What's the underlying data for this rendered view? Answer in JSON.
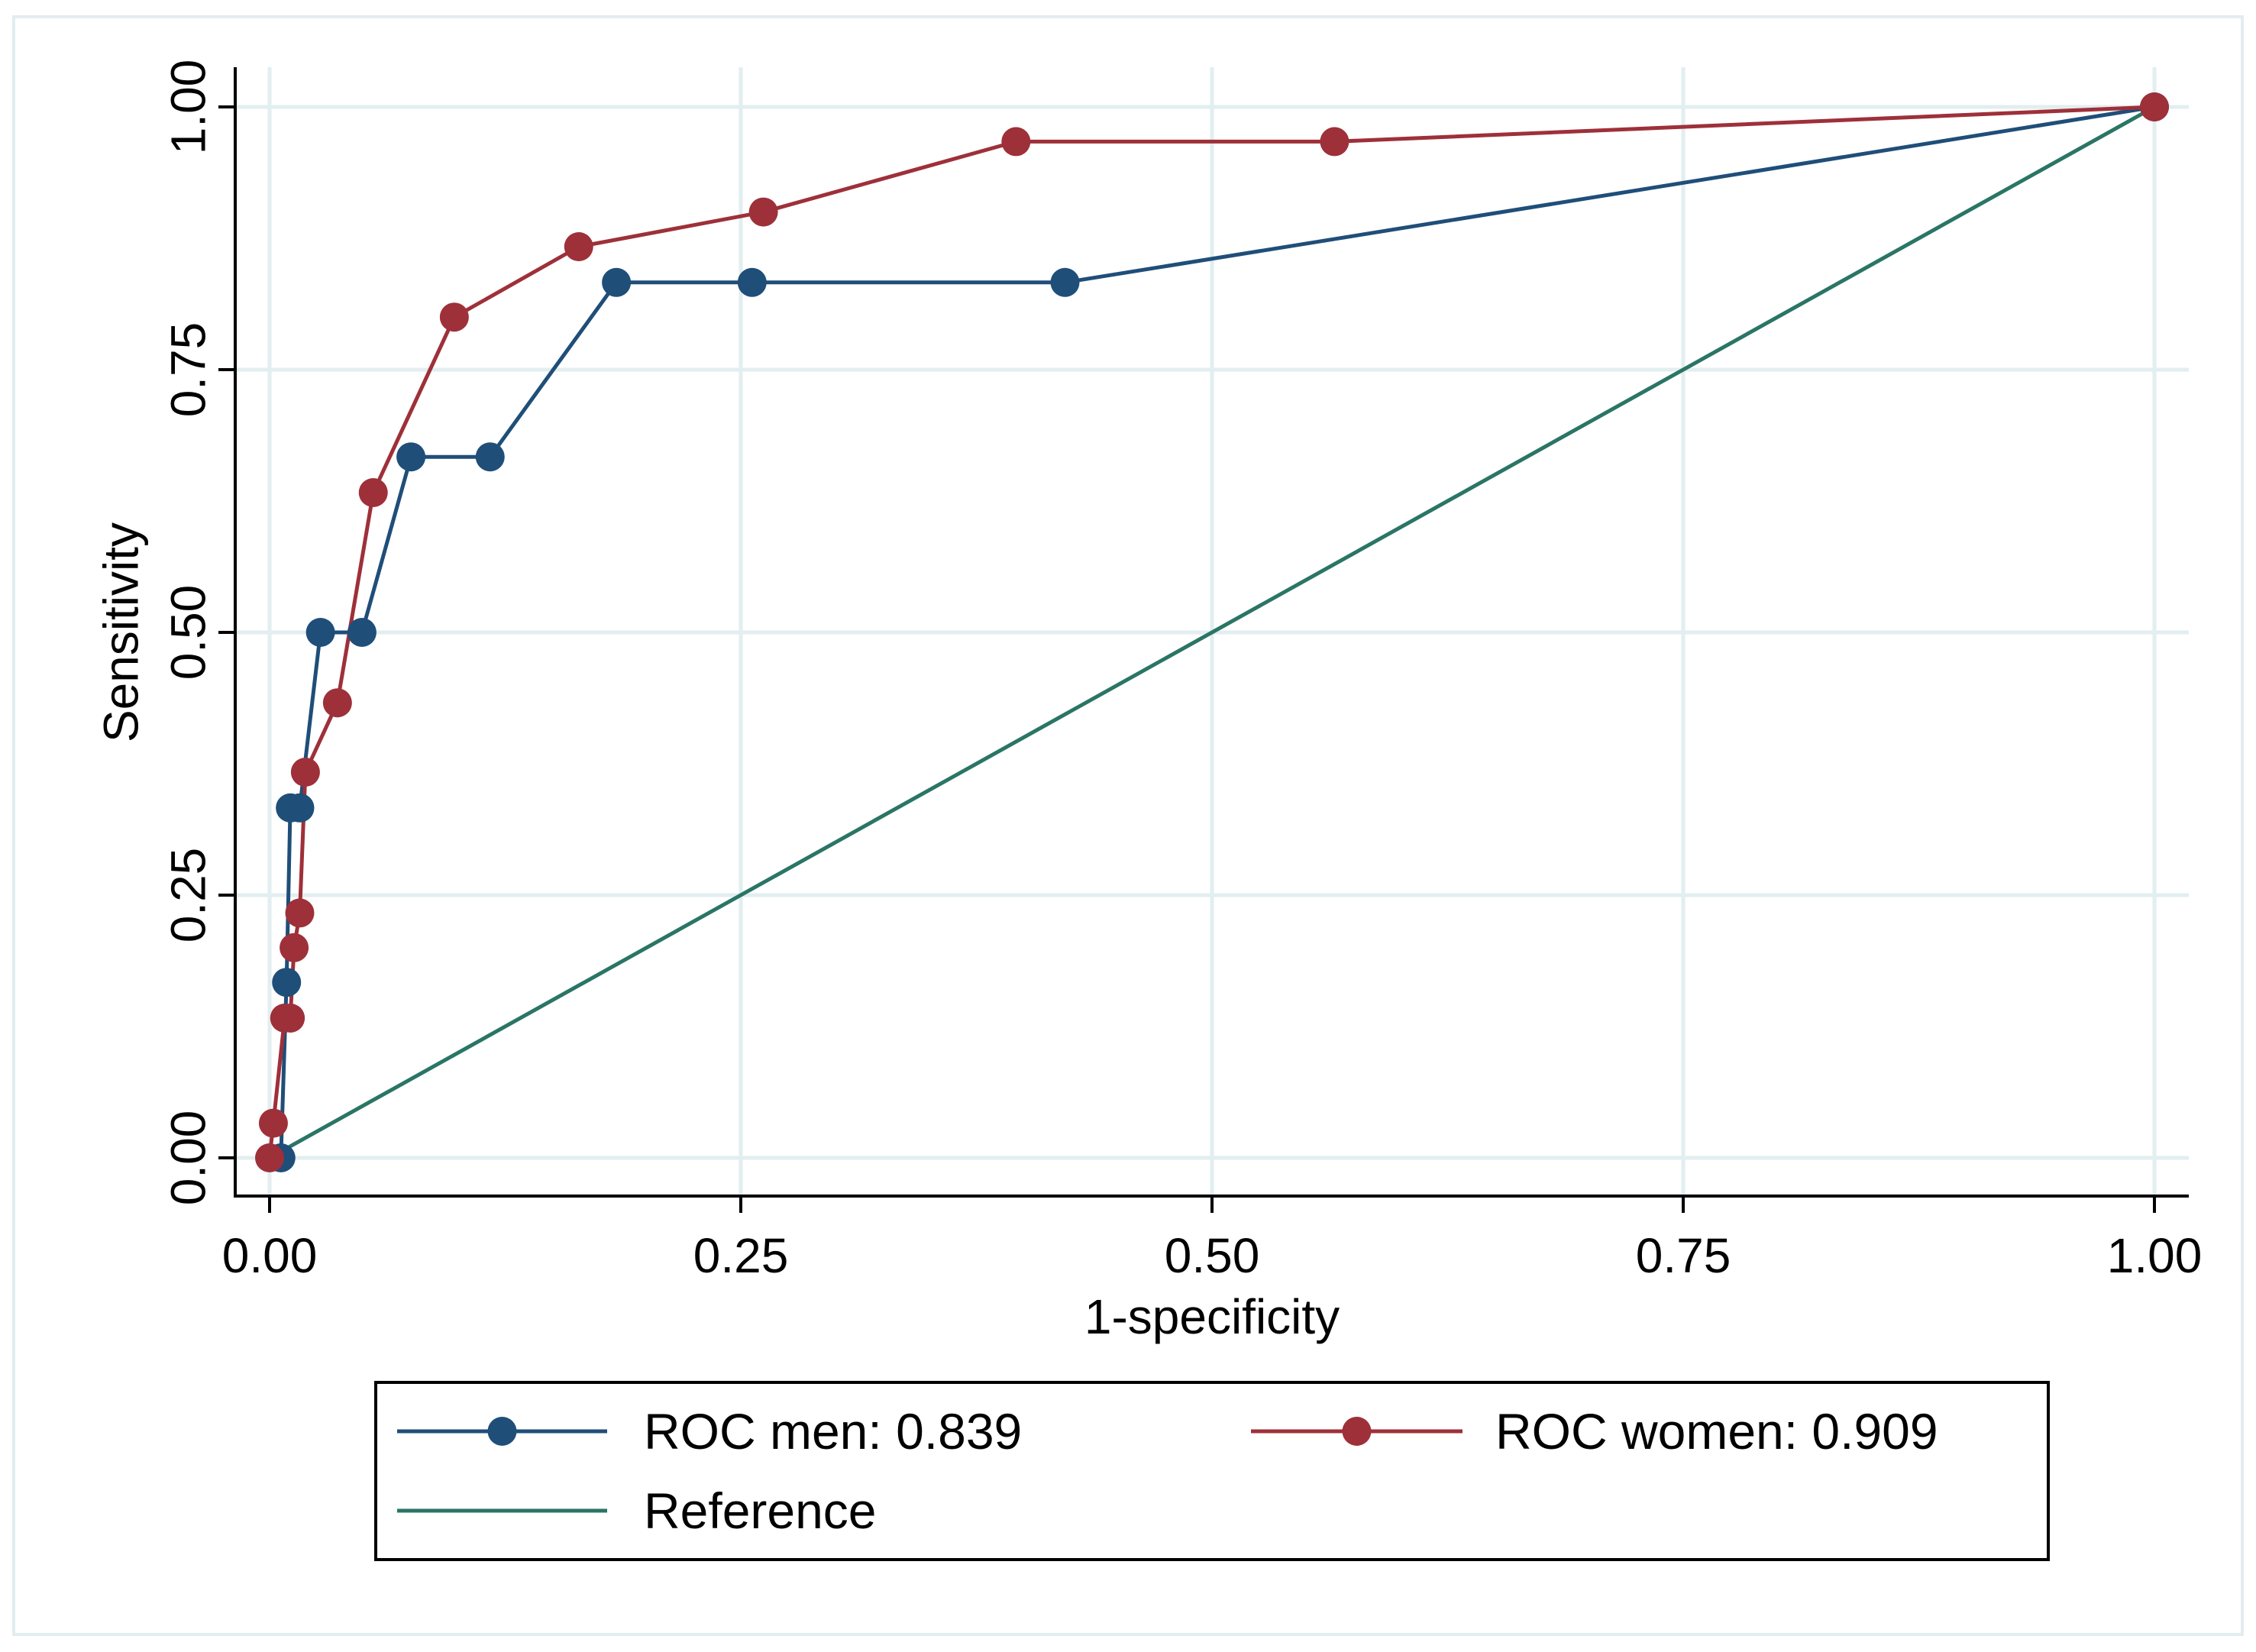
{
  "chart_data": {
    "type": "line",
    "title": "",
    "xlabel": "1-specificity",
    "ylabel": "Sensitivity",
    "xlim": [
      0,
      1
    ],
    "ylim": [
      0,
      1
    ],
    "xticks": [
      "0.00",
      "0.25",
      "0.50",
      "0.75",
      "1.00"
    ],
    "yticks": [
      "0.00",
      "0.25",
      "0.50",
      "0.75",
      "1.00"
    ],
    "grid": true,
    "legend_position": "bottom",
    "series": [
      {
        "name": "ROC men: 0.839",
        "color": "#1f4e79",
        "markers": true,
        "x": [
          0.006,
          0.009,
          0.011,
          0.016,
          0.027,
          0.049,
          0.075,
          0.117,
          0.184,
          0.256,
          0.422,
          1.0
        ],
        "y": [
          0.0,
          0.167,
          0.333,
          0.333,
          0.5,
          0.5,
          0.667,
          0.667,
          0.833,
          0.833,
          0.833,
          1.0
        ]
      },
      {
        "name": "ROC women: 0.909",
        "color": "#9e3039",
        "markers": true,
        "x": [
          0.0,
          0.002,
          0.008,
          0.011,
          0.013,
          0.016,
          0.019,
          0.036,
          0.055,
          0.098,
          0.164,
          0.262,
          0.396,
          0.565,
          1.0
        ],
        "y": [
          0.0,
          0.033,
          0.133,
          0.133,
          0.2,
          0.233,
          0.367,
          0.433,
          0.633,
          0.8,
          0.867,
          0.9,
          0.967,
          0.967,
          1.0
        ]
      },
      {
        "name": "Reference",
        "color": "#2a7566",
        "markers": false,
        "x": [
          0,
          1
        ],
        "y": [
          0,
          1
        ]
      }
    ]
  }
}
